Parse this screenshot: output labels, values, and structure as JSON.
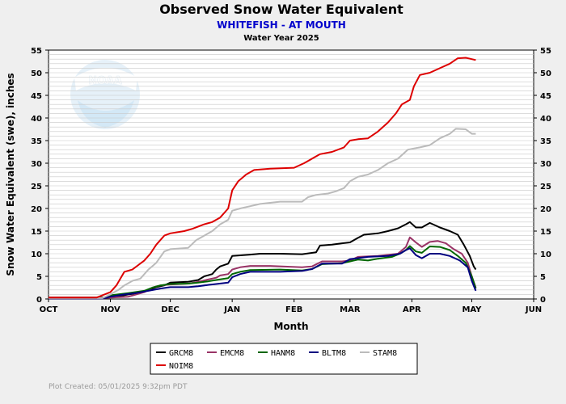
{
  "header": {
    "title": "Observed Snow Water Equivalent",
    "subtitle": "WHITEFISH - AT MOUTH",
    "subtitle2": "Water Year 2025",
    "subtitle_color": "#0000cc"
  },
  "logo": {
    "text": "NOAA",
    "icon": "noaa-logo-icon"
  },
  "footer": {
    "created": "Plot Created: 05/01/2025 9:32pm PDT"
  },
  "chart_data": {
    "type": "line",
    "title": "Observed Snow Water Equivalent",
    "xlabel": "Month",
    "ylabel": "Snow Water Equivalent (swe),  inches",
    "xlim": [
      "2024-10-01",
      "2025-06-01"
    ],
    "ylim": [
      0,
      55
    ],
    "x_ticks": [
      {
        "label": "OCT",
        "date": "2024-10-01"
      },
      {
        "label": "NOV",
        "date": "2024-11-01"
      },
      {
        "label": "DEC",
        "date": "2024-12-01"
      },
      {
        "label": "JAN",
        "date": "2025-01-01"
      },
      {
        "label": "FEB",
        "date": "2025-02-01"
      },
      {
        "label": "MAR",
        "date": "2025-03-01"
      },
      {
        "label": "APR",
        "date": "2025-04-01"
      },
      {
        "label": "MAY",
        "date": "2025-05-01"
      },
      {
        "label": "JUN",
        "date": "2025-06-01"
      }
    ],
    "y_ticks": [
      0,
      5,
      10,
      15,
      20,
      25,
      30,
      35,
      40,
      45,
      50,
      55
    ],
    "y_axis_right": true,
    "grid": true,
    "legend_position": "bottom",
    "series": [
      {
        "name": "GRCM8",
        "color": "#000000",
        "points": [
          [
            "2024-10-01",
            0.3
          ],
          [
            "2024-10-28",
            0.3
          ],
          [
            "2024-11-01",
            0.5
          ],
          [
            "2024-11-06",
            0.7
          ],
          [
            "2024-11-10",
            1.0
          ],
          [
            "2024-11-15",
            1.3
          ],
          [
            "2024-11-20",
            2.0
          ],
          [
            "2024-11-24",
            2.6
          ],
          [
            "2024-11-28",
            3.0
          ],
          [
            "2024-12-01",
            3.6
          ],
          [
            "2024-12-05",
            3.7
          ],
          [
            "2024-12-10",
            3.8
          ],
          [
            "2024-12-15",
            4.2
          ],
          [
            "2024-12-18",
            5.0
          ],
          [
            "2024-12-22",
            5.5
          ],
          [
            "2024-12-24",
            6.5
          ],
          [
            "2024-12-26",
            7.2
          ],
          [
            "2024-12-30",
            7.8
          ],
          [
            "2025-01-01",
            9.5
          ],
          [
            "2025-01-10",
            9.8
          ],
          [
            "2025-01-15",
            10.0
          ],
          [
            "2025-01-25",
            10.0
          ],
          [
            "2025-02-05",
            9.9
          ],
          [
            "2025-02-12",
            10.3
          ],
          [
            "2025-02-14",
            11.8
          ],
          [
            "2025-02-20",
            12.0
          ],
          [
            "2025-02-25",
            12.3
          ],
          [
            "2025-03-01",
            12.5
          ],
          [
            "2025-03-05",
            13.5
          ],
          [
            "2025-03-08",
            14.2
          ],
          [
            "2025-03-15",
            14.5
          ],
          [
            "2025-03-20",
            15.0
          ],
          [
            "2025-03-25",
            15.6
          ],
          [
            "2025-03-29",
            16.5
          ],
          [
            "2025-03-31",
            17.0
          ],
          [
            "2025-04-03",
            15.8
          ],
          [
            "2025-04-06",
            15.8
          ],
          [
            "2025-04-10",
            16.8
          ],
          [
            "2025-04-15",
            15.8
          ],
          [
            "2025-04-20",
            15.0
          ],
          [
            "2025-04-24",
            14.2
          ],
          [
            "2025-04-27",
            12.0
          ],
          [
            "2025-04-30",
            9.5
          ],
          [
            "2025-05-02",
            7.2
          ],
          [
            "2025-05-03",
            6.5
          ]
        ]
      },
      {
        "name": "EMCM8",
        "color": "#993366",
        "points": [
          [
            "2024-10-01",
            0.2
          ],
          [
            "2024-10-28",
            0.2
          ],
          [
            "2024-11-01",
            0.3
          ],
          [
            "2024-11-10",
            0.5
          ],
          [
            "2024-11-18",
            1.5
          ],
          [
            "2024-11-22",
            2.5
          ],
          [
            "2024-11-26",
            3.0
          ],
          [
            "2024-12-01",
            3.2
          ],
          [
            "2024-12-10",
            3.4
          ],
          [
            "2024-12-15",
            3.8
          ],
          [
            "2024-12-20",
            4.3
          ],
          [
            "2024-12-24",
            4.7
          ],
          [
            "2024-12-26",
            5.2
          ],
          [
            "2024-12-30",
            5.5
          ],
          [
            "2025-01-01",
            6.5
          ],
          [
            "2025-01-05",
            7.0
          ],
          [
            "2025-01-10",
            7.3
          ],
          [
            "2025-01-20",
            7.3
          ],
          [
            "2025-02-05",
            7.0
          ],
          [
            "2025-02-10",
            7.2
          ],
          [
            "2025-02-15",
            8.3
          ],
          [
            "2025-02-25",
            8.3
          ],
          [
            "2025-03-01",
            8.5
          ],
          [
            "2025-03-05",
            9.3
          ],
          [
            "2025-03-15",
            9.5
          ],
          [
            "2025-03-25",
            10.0
          ],
          [
            "2025-03-29",
            11.5
          ],
          [
            "2025-03-31",
            13.6
          ],
          [
            "2025-04-03",
            12.5
          ],
          [
            "2025-04-06",
            11.5
          ],
          [
            "2025-04-10",
            12.6
          ],
          [
            "2025-04-14",
            12.8
          ],
          [
            "2025-04-18",
            12.3
          ],
          [
            "2025-04-22",
            11.0
          ],
          [
            "2025-04-26",
            10.0
          ],
          [
            "2025-04-29",
            8.0
          ],
          [
            "2025-05-01",
            5.0
          ],
          [
            "2025-05-03",
            2.5
          ]
        ]
      },
      {
        "name": "HANM8",
        "color": "#006600",
        "points": [
          [
            "2024-10-01",
            0.2
          ],
          [
            "2024-10-28",
            0.2
          ],
          [
            "2024-11-01",
            0.8
          ],
          [
            "2024-11-10",
            1.3
          ],
          [
            "2024-11-18",
            1.8
          ],
          [
            "2024-11-22",
            2.5
          ],
          [
            "2024-11-26",
            3.0
          ],
          [
            "2024-12-01",
            3.3
          ],
          [
            "2024-12-10",
            3.4
          ],
          [
            "2024-12-15",
            3.6
          ],
          [
            "2024-12-20",
            3.9
          ],
          [
            "2024-12-24",
            4.2
          ],
          [
            "2024-12-30",
            4.6
          ],
          [
            "2025-01-01",
            5.5
          ],
          [
            "2025-01-05",
            6.0
          ],
          [
            "2025-01-10",
            6.4
          ],
          [
            "2025-01-25",
            6.5
          ],
          [
            "2025-02-05",
            6.3
          ],
          [
            "2025-02-10",
            6.6
          ],
          [
            "2025-02-15",
            7.7
          ],
          [
            "2025-02-25",
            7.9
          ],
          [
            "2025-03-01",
            8.3
          ],
          [
            "2025-03-05",
            8.7
          ],
          [
            "2025-03-10",
            8.5
          ],
          [
            "2025-03-15",
            8.9
          ],
          [
            "2025-03-22",
            9.3
          ],
          [
            "2025-03-26",
            10.0
          ],
          [
            "2025-03-29",
            10.8
          ],
          [
            "2025-03-31",
            11.7
          ],
          [
            "2025-04-03",
            10.5
          ],
          [
            "2025-04-06",
            10.2
          ],
          [
            "2025-04-10",
            11.6
          ],
          [
            "2025-04-15",
            11.5
          ],
          [
            "2025-04-20",
            10.8
          ],
          [
            "2025-04-24",
            9.5
          ],
          [
            "2025-04-28",
            8.0
          ],
          [
            "2025-05-01",
            5.0
          ],
          [
            "2025-05-03",
            2.3
          ]
        ]
      },
      {
        "name": "BLTM8",
        "color": "#000080",
        "points": [
          [
            "2024-10-01",
            0.1
          ],
          [
            "2024-10-28",
            0.1
          ],
          [
            "2024-11-01",
            0.5
          ],
          [
            "2024-11-08",
            1.0
          ],
          [
            "2024-11-14",
            1.3
          ],
          [
            "2024-11-20",
            1.8
          ],
          [
            "2024-11-26",
            2.3
          ],
          [
            "2024-12-01",
            2.6
          ],
          [
            "2024-12-10",
            2.6
          ],
          [
            "2024-12-15",
            2.8
          ],
          [
            "2024-12-20",
            3.1
          ],
          [
            "2024-12-24",
            3.3
          ],
          [
            "2024-12-30",
            3.6
          ],
          [
            "2025-01-01",
            4.8
          ],
          [
            "2025-01-05",
            5.5
          ],
          [
            "2025-01-10",
            6.0
          ],
          [
            "2025-01-25",
            6.0
          ],
          [
            "2025-02-05",
            6.2
          ],
          [
            "2025-02-10",
            6.6
          ],
          [
            "2025-02-15",
            7.8
          ],
          [
            "2025-02-25",
            7.8
          ],
          [
            "2025-03-01",
            8.8
          ],
          [
            "2025-03-10",
            9.3
          ],
          [
            "2025-03-20",
            9.5
          ],
          [
            "2025-03-26",
            10.0
          ],
          [
            "2025-03-29",
            10.8
          ],
          [
            "2025-03-31",
            11.2
          ],
          [
            "2025-04-03",
            9.7
          ],
          [
            "2025-04-06",
            9.0
          ],
          [
            "2025-04-10",
            10.0
          ],
          [
            "2025-04-15",
            10.0
          ],
          [
            "2025-04-20",
            9.5
          ],
          [
            "2025-04-25",
            8.5
          ],
          [
            "2025-04-29",
            7.0
          ],
          [
            "2025-05-01",
            4.0
          ],
          [
            "2025-05-03",
            1.8
          ]
        ]
      },
      {
        "name": "STAM8",
        "color": "#bbbbbb",
        "points": [
          [
            "2024-10-01",
            0.2
          ],
          [
            "2024-10-28",
            0.2
          ],
          [
            "2024-11-01",
            1.0
          ],
          [
            "2024-11-05",
            2.0
          ],
          [
            "2024-11-08",
            3.0
          ],
          [
            "2024-11-12",
            4.0
          ],
          [
            "2024-11-16",
            4.5
          ],
          [
            "2024-11-20",
            6.5
          ],
          [
            "2024-11-24",
            8.0
          ],
          [
            "2024-11-28",
            10.5
          ],
          [
            "2024-12-01",
            11.0
          ],
          [
            "2024-12-10",
            11.3
          ],
          [
            "2024-12-14",
            13.0
          ],
          [
            "2024-12-18",
            14.0
          ],
          [
            "2024-12-22",
            15.0
          ],
          [
            "2024-12-26",
            16.5
          ],
          [
            "2024-12-30",
            17.5
          ],
          [
            "2025-01-01",
            19.5
          ],
          [
            "2025-01-05",
            20.0
          ],
          [
            "2025-01-10",
            20.5
          ],
          [
            "2025-01-15",
            21.0
          ],
          [
            "2025-01-25",
            21.5
          ],
          [
            "2025-02-05",
            21.5
          ],
          [
            "2025-02-08",
            22.5
          ],
          [
            "2025-02-12",
            23.0
          ],
          [
            "2025-02-18",
            23.3
          ],
          [
            "2025-02-22",
            23.8
          ],
          [
            "2025-02-26",
            24.5
          ],
          [
            "2025-03-01",
            26.0
          ],
          [
            "2025-03-05",
            27.0
          ],
          [
            "2025-03-10",
            27.5
          ],
          [
            "2025-03-15",
            28.5
          ],
          [
            "2025-03-20",
            30.0
          ],
          [
            "2025-03-25",
            31.0
          ],
          [
            "2025-03-30",
            33.0
          ],
          [
            "2025-04-05",
            33.5
          ],
          [
            "2025-04-10",
            34.0
          ],
          [
            "2025-04-15",
            35.5
          ],
          [
            "2025-04-20",
            36.5
          ],
          [
            "2025-04-23",
            37.6
          ],
          [
            "2025-04-28",
            37.5
          ],
          [
            "2025-05-01",
            36.5
          ],
          [
            "2025-05-03",
            36.5
          ]
        ]
      },
      {
        "name": "NOIM8",
        "color": "#dd0000",
        "points": [
          [
            "2024-10-01",
            0.3
          ],
          [
            "2024-10-25",
            0.3
          ],
          [
            "2024-11-01",
            1.5
          ],
          [
            "2024-11-04",
            3.0
          ],
          [
            "2024-11-06",
            4.5
          ],
          [
            "2024-11-08",
            6.0
          ],
          [
            "2024-11-12",
            6.5
          ],
          [
            "2024-11-15",
            7.5
          ],
          [
            "2024-11-18",
            8.5
          ],
          [
            "2024-11-21",
            10.0
          ],
          [
            "2024-11-24",
            12.0
          ],
          [
            "2024-11-28",
            14.0
          ],
          [
            "2024-12-01",
            14.5
          ],
          [
            "2024-12-08",
            15.0
          ],
          [
            "2024-12-12",
            15.5
          ],
          [
            "2024-12-18",
            16.5
          ],
          [
            "2024-12-22",
            17.0
          ],
          [
            "2024-12-26",
            18.0
          ],
          [
            "2024-12-30",
            20.0
          ],
          [
            "2025-01-01",
            24.0
          ],
          [
            "2025-01-04",
            26.0
          ],
          [
            "2025-01-08",
            27.5
          ],
          [
            "2025-01-12",
            28.5
          ],
          [
            "2025-01-20",
            28.8
          ],
          [
            "2025-02-01",
            29.0
          ],
          [
            "2025-02-06",
            30.0
          ],
          [
            "2025-02-10",
            31.0
          ],
          [
            "2025-02-14",
            32.0
          ],
          [
            "2025-02-20",
            32.5
          ],
          [
            "2025-02-26",
            33.5
          ],
          [
            "2025-03-01",
            35.0
          ],
          [
            "2025-03-05",
            35.3
          ],
          [
            "2025-03-10",
            35.5
          ],
          [
            "2025-03-15",
            37.0
          ],
          [
            "2025-03-20",
            39.0
          ],
          [
            "2025-03-24",
            41.0
          ],
          [
            "2025-03-27",
            43.0
          ],
          [
            "2025-03-31",
            44.0
          ],
          [
            "2025-04-02",
            47.0
          ],
          [
            "2025-04-05",
            49.5
          ],
          [
            "2025-04-10",
            50.0
          ],
          [
            "2025-04-15",
            51.0
          ],
          [
            "2025-04-20",
            52.0
          ],
          [
            "2025-04-24",
            53.2
          ],
          [
            "2025-04-28",
            53.3
          ],
          [
            "2025-05-01",
            53.0
          ],
          [
            "2025-05-03",
            52.8
          ]
        ]
      }
    ]
  }
}
